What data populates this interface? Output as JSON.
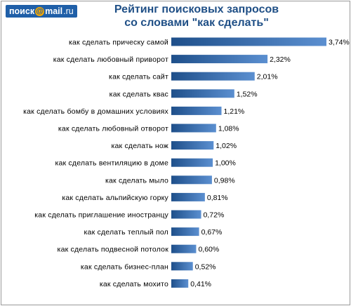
{
  "logo": {
    "brand": "поиск",
    "at": "@",
    "domain": "mail",
    "tld": ".ru"
  },
  "colors": {
    "bar_dark": "#1e4f8a",
    "bar_light": "#5b8fd0",
    "title": "#1f4f86",
    "logo_bg": "#1f5fa8"
  },
  "chart_data": {
    "type": "bar",
    "orientation": "horizontal",
    "title": "Рейтинг поисковых запросов со словами \"как сделать\"",
    "title_lines": [
      "Рейтинг поисковых запросов",
      "со словами \"как сделать\""
    ],
    "categories": [
      "как сделать прическу самой",
      "как сделать любовный приворот",
      "как сделать сайт",
      "как сделать квас",
      "как сделать бомбу в домашних условиях",
      "как сделать любовный отворот",
      "как сделать нож",
      "как сделать вентиляцию в доме",
      "как сделать мыло",
      "как сделать альпийскую горку",
      "как сделать приглашение иностранцу",
      "как сделать теплый пол",
      "как сделать подвесной потолок",
      "как сделать бизнес-план",
      "как сделать мохито"
    ],
    "values": [
      3.74,
      2.32,
      2.01,
      1.52,
      1.21,
      1.08,
      1.02,
      1.0,
      0.98,
      0.81,
      0.72,
      0.67,
      0.6,
      0.52,
      0.41
    ],
    "value_labels": [
      "3,74%",
      "2,32%",
      "2,01%",
      "1,52%",
      "1,21%",
      "1,08%",
      "1,02%",
      "1,00%",
      "0,98%",
      "0,81%",
      "0,72%",
      "0,67%",
      "0,60%",
      "0,52%",
      "0,41%"
    ],
    "unit": "%",
    "xlim": [
      0,
      3.74
    ],
    "grid": false,
    "legend": "none"
  }
}
